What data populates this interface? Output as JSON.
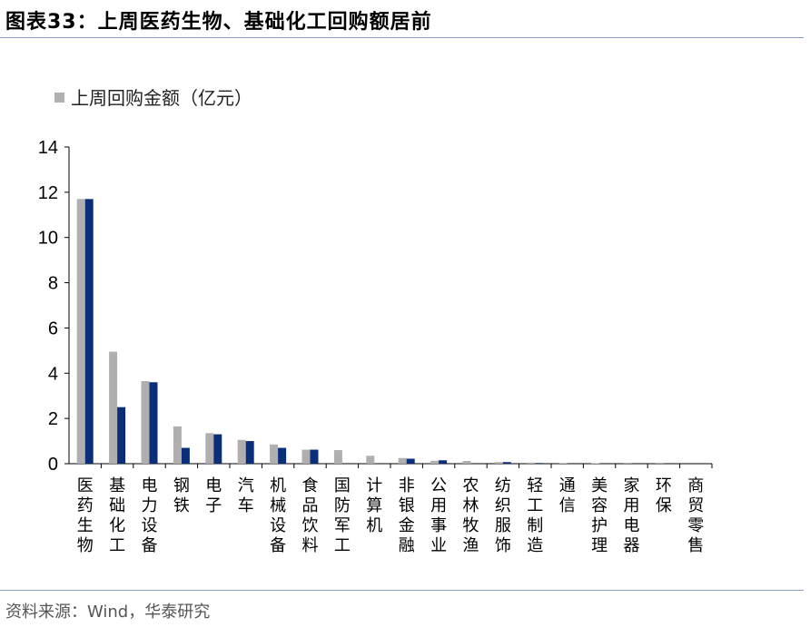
{
  "header": {
    "figure_number": "图表33：",
    "title": "上周医药生物、基础化工回购额居前"
  },
  "footer": {
    "source": "资料来源：Wind，华泰研究"
  },
  "colors": {
    "series_grey": "#b0aeae",
    "series_navy": "#0a2e7a",
    "rule": "#8aa0c8"
  },
  "chart_data": {
    "type": "bar",
    "categories": [
      "医药生物",
      "基础化工",
      "电力设备",
      "钢铁",
      "电子",
      "汽车",
      "机械设备",
      "食品饮料",
      "国防军工",
      "计算机",
      "非银金融",
      "公用事业",
      "农林牧渔",
      "纺织服饰",
      "轻工制造",
      "通信",
      "美容护理",
      "家用电器",
      "环保",
      "商贸零售"
    ],
    "series": [
      {
        "name": "上周回购金额（亿元）",
        "values": [
          11.7,
          4.95,
          3.65,
          1.65,
          1.35,
          1.05,
          0.85,
          0.62,
          0.6,
          0.35,
          0.25,
          0.13,
          0.12,
          0.07,
          0.05,
          0.03,
          0.02,
          0.01,
          0.01,
          0.0
        ]
      },
      {
        "values": [
          11.7,
          2.5,
          3.6,
          0.7,
          1.3,
          1.0,
          0.7,
          0.62,
          0.0,
          0.0,
          0.22,
          0.15,
          0.0,
          0.07,
          0.03,
          0.0,
          0.0,
          0.0,
          0.0,
          0.0
        ]
      }
    ],
    "ylim": [
      0,
      14
    ],
    "yticks": [
      0,
      2,
      4,
      6,
      8,
      10,
      12,
      14
    ],
    "grid": false,
    "legend_position": "top-left"
  }
}
